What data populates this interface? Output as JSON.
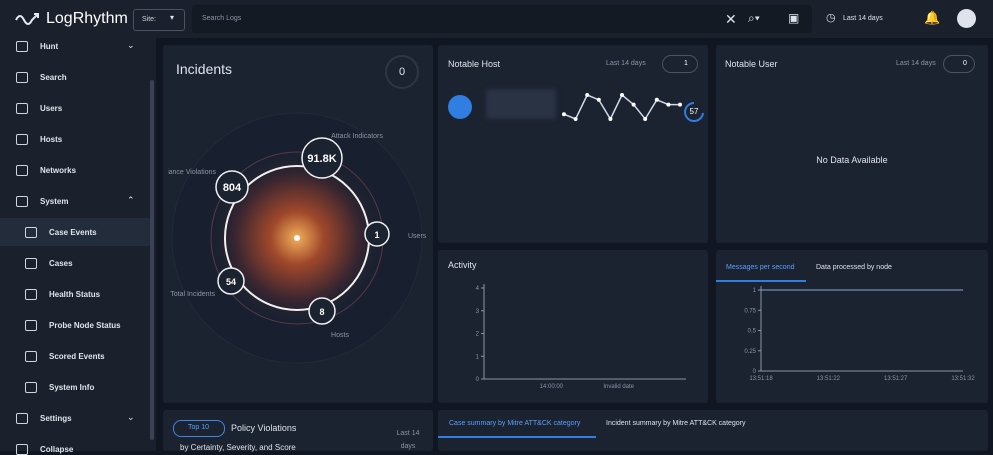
{
  "header": {
    "logo": "LogRhythm",
    "site": "Site:",
    "search": "Search Logs",
    "time": "Last 14 days"
  },
  "sidebar": {
    "items": [
      {
        "label": "Hunt"
      },
      {
        "label": "Search"
      },
      {
        "label": "Users"
      },
      {
        "label": "Hosts"
      },
      {
        "label": "Networks"
      },
      {
        "label": "System",
        "children": [
          "Case Events",
          "Cases",
          "Health Status",
          "Probe Node Status",
          "Scored Events",
          "System Info"
        ]
      },
      {
        "label": "Settings"
      },
      {
        "label": "Collapse"
      }
    ]
  },
  "incidents": {
    "title": "Incidents",
    "count": "0",
    "nodes": [
      {
        "label": "Attack Indicators",
        "count": "91.8K"
      },
      {
        "label": "liance Violations",
        "count": "804"
      },
      {
        "label": "Users",
        "count": "1"
      },
      {
        "label": "Total Incidents",
        "count": "54"
      },
      {
        "label": "Hosts",
        "count": "8"
      }
    ]
  },
  "notable_host": {
    "title": "Notable Host",
    "time": "Last 14 days",
    "count": "1",
    "score": "57",
    "sparkline": [
      3,
      2,
      7,
      6,
      2,
      7,
      5,
      2,
      6,
      5,
      5
    ]
  },
  "notable_user": {
    "title": "Notable User",
    "time": "Last 14 days",
    "count": "0",
    "empty": "No Data Available"
  },
  "activity": {
    "title": "Activity",
    "chart_data": {
      "type": "line",
      "categories": [
        "14:00:00",
        "Invalid date"
      ],
      "ylim": [
        0,
        4
      ],
      "yticks": [
        0,
        1,
        2,
        3,
        4
      ]
    }
  },
  "messages": {
    "tabs": [
      "Messages per second",
      "Data processed by node"
    ],
    "chart_data": {
      "type": "line",
      "categories": [
        "13:51:18",
        "13:51:22",
        "13:51:27",
        "13:51:32"
      ],
      "series": [
        {
          "color": "#8aa6d6",
          "values": [
            1,
            1,
            1,
            1
          ]
        }
      ],
      "ylim": [
        0,
        1
      ],
      "yticks": [
        0,
        0.25,
        0.5,
        0.75,
        1
      ]
    }
  },
  "policy": {
    "top": "Top 10",
    "title": "Policy Violations",
    "subtitle": "by Certainty, Severity, and Score",
    "time": "Last 14 days"
  },
  "mitre": {
    "tabs": [
      "Case summary by Mitre ATT&CK category",
      "Incident summary by Mitre ATT&CK category"
    ]
  }
}
